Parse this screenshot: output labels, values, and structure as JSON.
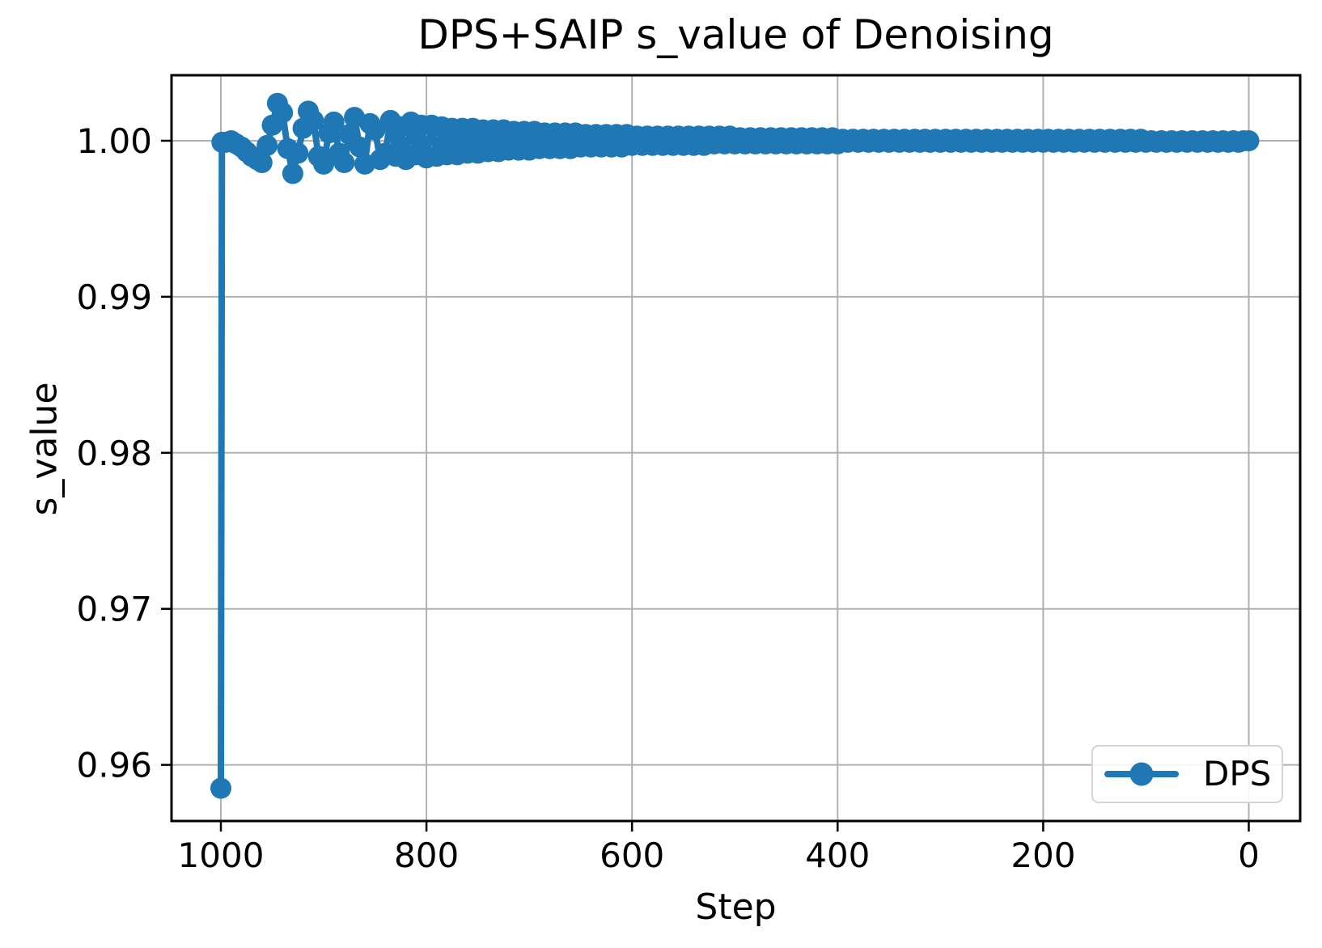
{
  "chart_data": {
    "type": "line",
    "title": "DPS+SAIP s_value of Denoising",
    "xlabel": "Step",
    "ylabel": "s_value",
    "x_axis_reversed": true,
    "xlim": [
      1048,
      -50
    ],
    "ylim": [
      0.9564,
      1.0042
    ],
    "x_ticks": [
      1000,
      800,
      600,
      400,
      200,
      0
    ],
    "x_tick_labels": [
      "1000",
      "800",
      "600",
      "400",
      "200",
      "0"
    ],
    "y_ticks": [
      1.0,
      0.99,
      0.98,
      0.97,
      0.96
    ],
    "y_tick_labels": [
      "1.00",
      "0.99",
      "0.98",
      "0.97",
      "0.96"
    ],
    "grid": true,
    "colors": {
      "series": "#1f77b4",
      "grid": "#b0b0b0",
      "spine": "#000000",
      "tick": "#000000",
      "legend_border": "#d4d4d4"
    },
    "legend": {
      "position": "lower right",
      "entries": [
        {
          "label": "DPS",
          "color": "#1f77b4",
          "marker": "circle"
        }
      ]
    },
    "series": [
      {
        "name": "DPS",
        "points": [
          [
            1000,
            0.9585
          ],
          [
            999,
            0.9999
          ],
          [
            995,
            0.9999
          ],
          [
            990,
            1.0
          ],
          [
            985,
            0.9998
          ],
          [
            980,
            0.9996
          ],
          [
            975,
            0.9993
          ],
          [
            970,
            0.999
          ],
          [
            965,
            0.9988
          ],
          [
            960,
            0.9986
          ],
          [
            955,
            0.9997
          ],
          [
            950,
            1.001
          ],
          [
            945,
            1.0024
          ],
          [
            940,
            1.0018
          ],
          [
            935,
            0.9995
          ],
          [
            930,
            0.9979
          ],
          [
            925,
            0.9992
          ],
          [
            920,
            1.0008
          ],
          [
            915,
            1.0019
          ],
          [
            910,
            1.0013
          ],
          [
            905,
            0.999
          ],
          [
            900,
            0.9985
          ],
          [
            895,
            1.0005
          ],
          [
            890,
            1.0012
          ],
          [
            885,
            0.9992
          ],
          [
            880,
            0.9986
          ],
          [
            875,
            1.0004
          ],
          [
            870,
            1.0015
          ],
          [
            865,
            0.9996
          ],
          [
            860,
            0.9985
          ],
          [
            855,
            1.0011
          ],
          [
            850,
            1.0007
          ],
          [
            845,
            0.9988
          ],
          [
            840,
            0.9992
          ],
          [
            835,
            1.0013
          ],
          [
            830,
            0.999
          ],
          [
            825,
            1.0009
          ],
          [
            820,
            0.9988
          ],
          [
            815,
            1.0012
          ],
          [
            810,
            0.9991
          ],
          [
            805,
            1.001
          ],
          [
            800,
            0.9989
          ],
          [
            795,
            1.001
          ],
          [
            790,
            0.999
          ],
          [
            785,
            1.0009
          ],
          [
            780,
            0.9991
          ],
          [
            775,
            1.0008
          ],
          [
            770,
            0.9991
          ],
          [
            765,
            1.0008
          ],
          [
            760,
            0.9992
          ],
          [
            755,
            1.0008
          ],
          [
            750,
            0.9992
          ],
          [
            745,
            1.0007
          ],
          [
            740,
            0.9993
          ],
          [
            735,
            1.0007
          ],
          [
            730,
            0.9993
          ],
          [
            725,
            1.0007
          ],
          [
            720,
            0.9994
          ],
          [
            715,
            1.0006
          ],
          [
            710,
            0.9994
          ],
          [
            705,
            1.0006
          ],
          [
            700,
            0.9994
          ],
          [
            695,
            1.0006
          ],
          [
            690,
            0.9995
          ],
          [
            685,
            1.0005
          ],
          [
            680,
            0.9995
          ],
          [
            675,
            1.0005
          ],
          [
            670,
            0.9995
          ],
          [
            665,
            1.0005
          ],
          [
            660,
            0.9995
          ],
          [
            655,
            1.0005
          ],
          [
            650,
            0.9996
          ],
          [
            645,
            1.0004
          ],
          [
            640,
            0.9996
          ],
          [
            635,
            1.0004
          ],
          [
            630,
            0.9996
          ],
          [
            625,
            1.0004
          ],
          [
            620,
            0.9996
          ],
          [
            615,
            1.0004
          ],
          [
            610,
            0.9996
          ],
          [
            605,
            1.0004
          ],
          [
            600,
            0.9997
          ],
          [
            595,
            1.0003
          ],
          [
            590,
            0.9997
          ],
          [
            585,
            1.0003
          ],
          [
            580,
            0.9997
          ],
          [
            575,
            1.0003
          ],
          [
            570,
            0.9997
          ],
          [
            565,
            1.0003
          ],
          [
            560,
            0.9997
          ],
          [
            555,
            1.0003
          ],
          [
            550,
            0.9997
          ],
          [
            545,
            1.0003
          ],
          [
            540,
            0.9997
          ],
          [
            535,
            1.0003
          ],
          [
            530,
            0.9997
          ],
          [
            525,
            1.0003
          ],
          [
            520,
            0.9998
          ],
          [
            515,
            1.0003
          ],
          [
            510,
            0.9998
          ],
          [
            505,
            1.0003
          ],
          [
            500,
            0.9998
          ],
          [
            495,
            1.0002
          ],
          [
            490,
            0.9998
          ],
          [
            485,
            1.0002
          ],
          [
            480,
            0.9998
          ],
          [
            475,
            1.0002
          ],
          [
            470,
            0.9998
          ],
          [
            465,
            1.0002
          ],
          [
            460,
            0.9998
          ],
          [
            455,
            1.0002
          ],
          [
            450,
            0.9998
          ],
          [
            445,
            1.0002
          ],
          [
            440,
            0.9998
          ],
          [
            435,
            1.0002
          ],
          [
            430,
            0.9998
          ],
          [
            425,
            1.0002
          ],
          [
            420,
            0.9998
          ],
          [
            415,
            1.0002
          ],
          [
            410,
            0.9998
          ],
          [
            405,
            1.0002
          ],
          [
            400,
            0.9998
          ],
          [
            395,
            1.0001
          ],
          [
            390,
            0.9999
          ],
          [
            385,
            1.0001
          ],
          [
            380,
            0.9999
          ],
          [
            375,
            1.0001
          ],
          [
            370,
            0.9999
          ],
          [
            365,
            1.0001
          ],
          [
            360,
            0.9999
          ],
          [
            355,
            1.0001
          ],
          [
            350,
            0.9999
          ],
          [
            345,
            1.0001
          ],
          [
            340,
            0.9999
          ],
          [
            335,
            1.0001
          ],
          [
            330,
            0.9999
          ],
          [
            325,
            1.0001
          ],
          [
            320,
            0.9999
          ],
          [
            315,
            1.0001
          ],
          [
            310,
            0.9999
          ],
          [
            305,
            1.0001
          ],
          [
            300,
            0.9999
          ],
          [
            295,
            1.0001
          ],
          [
            290,
            0.9999
          ],
          [
            285,
            1.0001
          ],
          [
            280,
            0.9999
          ],
          [
            275,
            1.0001
          ],
          [
            270,
            0.9999
          ],
          [
            265,
            1.0001
          ],
          [
            260,
            0.9999
          ],
          [
            255,
            1.0001
          ],
          [
            250,
            0.9999
          ],
          [
            245,
            1.0001
          ],
          [
            240,
            0.9999
          ],
          [
            235,
            1.0001
          ],
          [
            230,
            0.9999
          ],
          [
            225,
            1.0001
          ],
          [
            220,
            0.9999
          ],
          [
            215,
            1.0001
          ],
          [
            210,
            0.9999
          ],
          [
            205,
            1.0001
          ],
          [
            200,
            0.9999
          ],
          [
            195,
            1.0001
          ],
          [
            190,
            0.9999
          ],
          [
            185,
            1.0001
          ],
          [
            180,
            0.9999
          ],
          [
            175,
            1.0001
          ],
          [
            170,
            0.9999
          ],
          [
            165,
            1.0001
          ],
          [
            160,
            0.9999
          ],
          [
            155,
            1.0001
          ],
          [
            150,
            0.9999
          ],
          [
            145,
            1.0001
          ],
          [
            140,
            0.9999
          ],
          [
            135,
            1.0001
          ],
          [
            130,
            0.9999
          ],
          [
            125,
            1.0001
          ],
          [
            120,
            0.9999
          ],
          [
            115,
            1.0001
          ],
          [
            110,
            0.9999
          ],
          [
            105,
            1.0001
          ],
          [
            100,
            0.9999
          ],
          [
            95,
            1.0
          ],
          [
            90,
            0.9999
          ],
          [
            85,
            1.0
          ],
          [
            80,
            0.9999
          ],
          [
            75,
            1.0
          ],
          [
            70,
            0.9999
          ],
          [
            65,
            1.0
          ],
          [
            60,
            0.9999
          ],
          [
            55,
            1.0
          ],
          [
            50,
            0.9999
          ],
          [
            45,
            1.0
          ],
          [
            40,
            0.9999
          ],
          [
            35,
            1.0
          ],
          [
            30,
            0.9999
          ],
          [
            25,
            1.0
          ],
          [
            20,
            0.9999
          ],
          [
            15,
            1.0
          ],
          [
            10,
            0.9999
          ],
          [
            5,
            1.0
          ],
          [
            0,
            1.0
          ]
        ]
      }
    ]
  }
}
